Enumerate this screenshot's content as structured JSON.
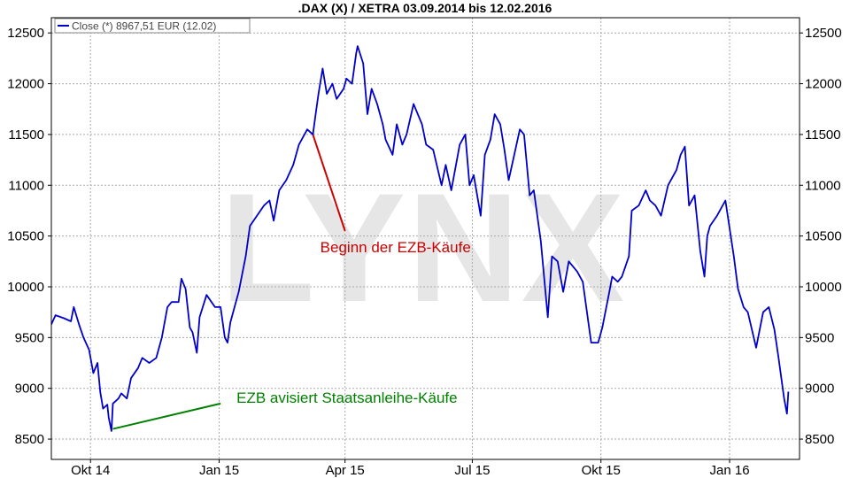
{
  "chart_data": {
    "type": "line",
    "title": ".DAX (X) / XETRA 03.09.2014 bis 12.02.2016",
    "watermark": "LYNX",
    "legend": {
      "label": "Close (*) 8967,51 EUR (12.02)",
      "placement": "top-left"
    },
    "xlabel": "",
    "ylabel": "",
    "ylim": [
      8300,
      12650
    ],
    "xlim": [
      "2014-09-03",
      "2016-02-20"
    ],
    "grid": true,
    "y_ticks": [
      8500,
      9000,
      9500,
      10000,
      10500,
      11000,
      11500,
      12000,
      12500
    ],
    "x_ticks": [
      {
        "label": "Okt 14",
        "date": "2014-10-01"
      },
      {
        "label": "Jan 15",
        "date": "2015-01-01"
      },
      {
        "label": "Apr 15",
        "date": "2015-04-01"
      },
      {
        "label": "Jul 15",
        "date": "2015-07-01"
      },
      {
        "label": "Okt 15",
        "date": "2015-10-01"
      },
      {
        "label": "Jan 16",
        "date": "2016-01-01"
      }
    ],
    "series": [
      {
        "name": "Close (*)",
        "color": "#0000cc",
        "points": [
          [
            "2014-09-03",
            9630
          ],
          [
            "2014-09-06",
            9720
          ],
          [
            "2014-09-12",
            9690
          ],
          [
            "2014-09-17",
            9660
          ],
          [
            "2014-09-19",
            9800
          ],
          [
            "2014-09-23",
            9620
          ],
          [
            "2014-09-26",
            9500
          ],
          [
            "2014-09-30",
            9380
          ],
          [
            "2014-10-03",
            9150
          ],
          [
            "2014-10-06",
            9250
          ],
          [
            "2014-10-08",
            8960
          ],
          [
            "2014-10-10",
            8800
          ],
          [
            "2014-10-13",
            8840
          ],
          [
            "2014-10-14",
            8710
          ],
          [
            "2014-10-16",
            8580
          ],
          [
            "2014-10-17",
            8850
          ],
          [
            "2014-10-21",
            8900
          ],
          [
            "2014-10-23",
            8950
          ],
          [
            "2014-10-27",
            8900
          ],
          [
            "2014-10-30",
            9100
          ],
          [
            "2014-11-04",
            9200
          ],
          [
            "2014-11-07",
            9300
          ],
          [
            "2014-11-12",
            9250
          ],
          [
            "2014-11-17",
            9300
          ],
          [
            "2014-11-21",
            9500
          ],
          [
            "2014-11-25",
            9800
          ],
          [
            "2014-11-28",
            9850
          ],
          [
            "2014-12-03",
            9850
          ],
          [
            "2014-12-05",
            10080
          ],
          [
            "2014-12-08",
            9980
          ],
          [
            "2014-12-11",
            9600
          ],
          [
            "2014-12-13",
            9550
          ],
          [
            "2014-12-16",
            9350
          ],
          [
            "2014-12-18",
            9700
          ],
          [
            "2014-12-23",
            9920
          ],
          [
            "2014-12-29",
            9800
          ],
          [
            "2015-01-02",
            9800
          ],
          [
            "2015-01-05",
            9500
          ],
          [
            "2015-01-07",
            9450
          ],
          [
            "2015-01-09",
            9650
          ],
          [
            "2015-01-12",
            9800
          ],
          [
            "2015-01-15",
            9950
          ],
          [
            "2015-01-20",
            10300
          ],
          [
            "2015-01-23",
            10600
          ],
          [
            "2015-01-28",
            10700
          ],
          [
            "2015-02-02",
            10800
          ],
          [
            "2015-02-06",
            10850
          ],
          [
            "2015-02-09",
            10650
          ],
          [
            "2015-02-13",
            10950
          ],
          [
            "2015-02-18",
            11050
          ],
          [
            "2015-02-23",
            11200
          ],
          [
            "2015-02-27",
            11400
          ],
          [
            "2015-03-05",
            11550
          ],
          [
            "2015-03-09",
            11500
          ],
          [
            "2015-03-11",
            11700
          ],
          [
            "2015-03-13",
            11900
          ],
          [
            "2015-03-16",
            12150
          ],
          [
            "2015-03-19",
            11900
          ],
          [
            "2015-03-23",
            12000
          ],
          [
            "2015-03-26",
            11850
          ],
          [
            "2015-03-31",
            11950
          ],
          [
            "2015-04-02",
            12050
          ],
          [
            "2015-04-06",
            12000
          ],
          [
            "2015-04-09",
            12300
          ],
          [
            "2015-04-10",
            12370
          ],
          [
            "2015-04-14",
            12200
          ],
          [
            "2015-04-17",
            11700
          ],
          [
            "2015-04-20",
            11950
          ],
          [
            "2015-04-24",
            11800
          ],
          [
            "2015-04-28",
            11600
          ],
          [
            "2015-04-30",
            11450
          ],
          [
            "2015-05-05",
            11300
          ],
          [
            "2015-05-08",
            11600
          ],
          [
            "2015-05-12",
            11400
          ],
          [
            "2015-05-15",
            11500
          ],
          [
            "2015-05-20",
            11800
          ],
          [
            "2015-05-26",
            11600
          ],
          [
            "2015-05-29",
            11400
          ],
          [
            "2015-06-03",
            11350
          ],
          [
            "2015-06-09",
            11000
          ],
          [
            "2015-06-12",
            11200
          ],
          [
            "2015-06-16",
            10950
          ],
          [
            "2015-06-22",
            11400
          ],
          [
            "2015-06-26",
            11500
          ],
          [
            "2015-06-29",
            11000
          ],
          [
            "2015-07-02",
            11100
          ],
          [
            "2015-07-07",
            10700
          ],
          [
            "2015-07-10",
            11300
          ],
          [
            "2015-07-14",
            11450
          ],
          [
            "2015-07-17",
            11700
          ],
          [
            "2015-07-21",
            11600
          ],
          [
            "2015-07-24",
            11350
          ],
          [
            "2015-07-27",
            11050
          ],
          [
            "2015-07-31",
            11300
          ],
          [
            "2015-08-04",
            11550
          ],
          [
            "2015-08-07",
            11500
          ],
          [
            "2015-08-11",
            10900
          ],
          [
            "2015-08-14",
            10950
          ],
          [
            "2015-08-19",
            10450
          ],
          [
            "2015-08-24",
            9700
          ],
          [
            "2015-08-27",
            10300
          ],
          [
            "2015-08-31",
            10250
          ],
          [
            "2015-09-04",
            9950
          ],
          [
            "2015-09-08",
            10250
          ],
          [
            "2015-09-14",
            10150
          ],
          [
            "2015-09-18",
            10050
          ],
          [
            "2015-09-22",
            9650
          ],
          [
            "2015-09-24",
            9450
          ],
          [
            "2015-09-29",
            9450
          ],
          [
            "2015-10-02",
            9600
          ],
          [
            "2015-10-07",
            9950
          ],
          [
            "2015-10-09",
            10100
          ],
          [
            "2015-10-13",
            10050
          ],
          [
            "2015-10-16",
            10100
          ],
          [
            "2015-10-21",
            10300
          ],
          [
            "2015-10-23",
            10750
          ],
          [
            "2015-10-28",
            10800
          ],
          [
            "2015-11-02",
            10950
          ],
          [
            "2015-11-05",
            10850
          ],
          [
            "2015-11-09",
            10800
          ],
          [
            "2015-11-13",
            10700
          ],
          [
            "2015-11-18",
            11000
          ],
          [
            "2015-11-24",
            11150
          ],
          [
            "2015-11-27",
            11300
          ],
          [
            "2015-11-30",
            11380
          ],
          [
            "2015-12-03",
            10800
          ],
          [
            "2015-12-07",
            10900
          ],
          [
            "2015-12-11",
            10350
          ],
          [
            "2015-12-14",
            10100
          ],
          [
            "2015-12-16",
            10500
          ],
          [
            "2015-12-18",
            10600
          ],
          [
            "2015-12-23",
            10700
          ],
          [
            "2015-12-29",
            10850
          ],
          [
            "2016-01-04",
            10300
          ],
          [
            "2016-01-07",
            9980
          ],
          [
            "2016-01-11",
            9800
          ],
          [
            "2016-01-14",
            9750
          ],
          [
            "2016-01-20",
            9400
          ],
          [
            "2016-01-25",
            9750
          ],
          [
            "2016-01-29",
            9800
          ],
          [
            "2016-02-02",
            9580
          ],
          [
            "2016-02-05",
            9300
          ],
          [
            "2016-02-09",
            8900
          ],
          [
            "2016-02-11",
            8750
          ],
          [
            "2016-02-12",
            8967.51
          ]
        ]
      }
    ],
    "annotations": [
      {
        "text": "Beginn der EZB-Käufe",
        "color": "#cc0000",
        "line_from": [
          "2015-03-09",
          11500
        ],
        "line_to": [
          "2015-04-01",
          10550
        ],
        "placement": "below-right"
      },
      {
        "text": "EZB avisiert Staatsanleihe-Käufe",
        "color": "#008000",
        "line_from": [
          "2014-10-17",
          8600
        ],
        "line_to": [
          "2015-01-02",
          8850
        ],
        "placement": "right"
      }
    ]
  }
}
